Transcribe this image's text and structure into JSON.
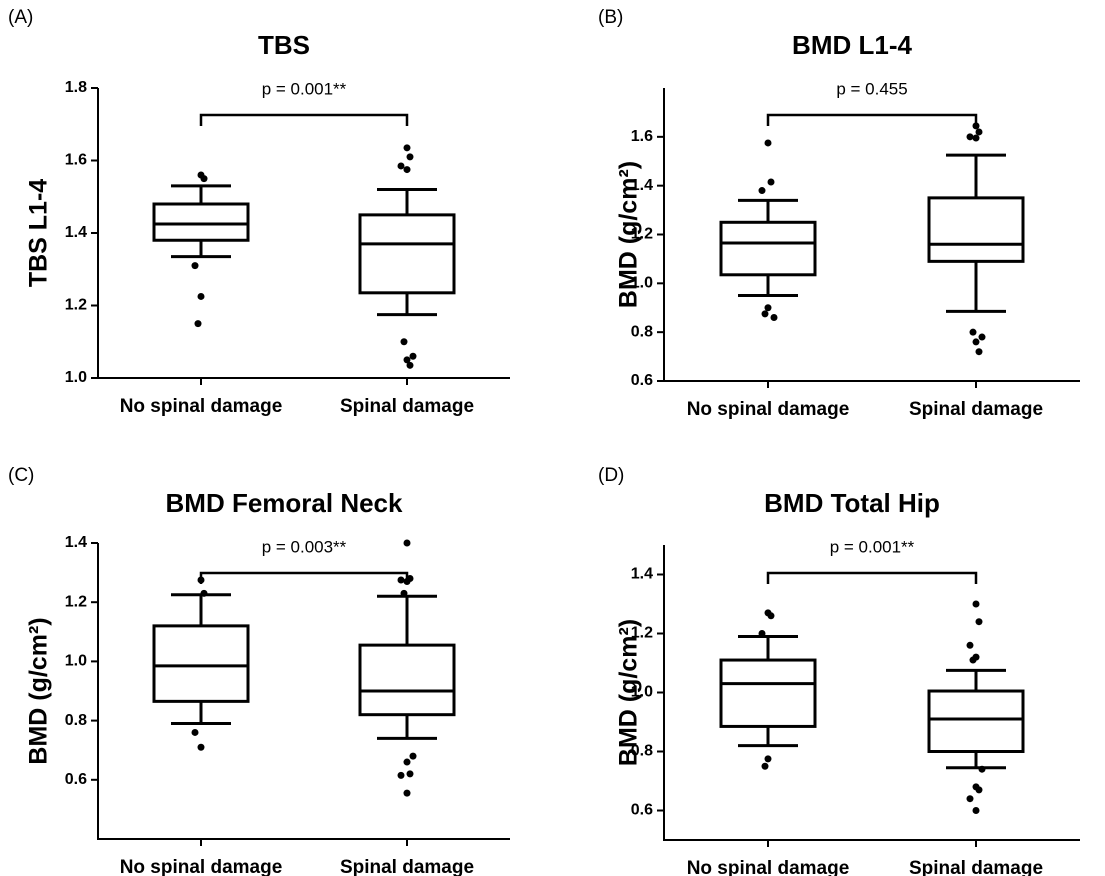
{
  "chart_data": [
    {
      "type": "box",
      "panel_label": "(A)",
      "title": "TBS",
      "ylabel": "TBS L1-4",
      "categories": [
        "No spinal damage",
        "Spinal damage"
      ],
      "boxes": [
        {
          "q1": 1.38,
          "median": 1.425,
          "q3": 1.48,
          "whisker_low": 1.335,
          "whisker_high": 1.53,
          "outliers": [
            1.56,
            1.55,
            1.31,
            1.225,
            1.15
          ]
        },
        {
          "q1": 1.235,
          "median": 1.37,
          "q3": 1.45,
          "whisker_low": 1.175,
          "whisker_high": 1.52,
          "outliers": [
            1.635,
            1.61,
            1.585,
            1.575,
            1.1,
            1.06,
            1.05,
            1.035
          ]
        }
      ],
      "annotation": "p = 0.001**",
      "ylim": [
        1.0,
        1.8
      ],
      "yticks": [
        {
          "value": 1.0,
          "label": "1.0"
        },
        1.2,
        1.4,
        1.6,
        1.8
      ],
      "color": "#000000"
    },
    {
      "type": "box",
      "panel_label": "(B)",
      "title": "BMD L1-4",
      "ylabel": "BMD (g/cm²)",
      "categories": [
        "No spinal damage",
        "Spinal damage"
      ],
      "boxes": [
        {
          "q1": 1.035,
          "median": 1.165,
          "q3": 1.25,
          "whisker_low": 0.95,
          "whisker_high": 1.34,
          "outliers": [
            1.575,
            1.415,
            1.38,
            0.9,
            0.875,
            0.86
          ]
        },
        {
          "q1": 1.09,
          "median": 1.16,
          "q3": 1.35,
          "whisker_low": 0.885,
          "whisker_high": 1.525,
          "outliers": [
            1.645,
            1.62,
            1.6,
            1.595,
            0.8,
            0.78,
            0.76,
            0.72
          ]
        }
      ],
      "annotation": "p = 0.455",
      "ylim": [
        0.6,
        1.8
      ],
      "yticks": [
        0.6,
        0.8,
        {
          "value": 1.0,
          "label": "1.0"
        },
        1.2,
        1.4,
        1.6
      ],
      "color": "#000000"
    },
    {
      "type": "box",
      "panel_label": "(C)",
      "title": "BMD Femoral Neck",
      "ylabel": "BMD (g/cm²)",
      "categories": [
        "No spinal damage",
        "Spinal damage"
      ],
      "boxes": [
        {
          "q1": 0.865,
          "median": 0.985,
          "q3": 1.12,
          "whisker_low": 0.79,
          "whisker_high": 1.225,
          "outliers": [
            1.275,
            1.23,
            0.76,
            0.71
          ]
        },
        {
          "q1": 0.82,
          "median": 0.9,
          "q3": 1.055,
          "whisker_low": 0.74,
          "whisker_high": 1.22,
          "outliers": [
            1.4,
            1.28,
            1.275,
            1.27,
            1.23,
            0.68,
            0.66,
            0.62,
            0.615,
            0.555
          ]
        }
      ],
      "annotation": "p = 0.003**",
      "ylim": [
        0.4,
        1.4
      ],
      "yticks": [
        0.6,
        0.8,
        {
          "value": 1.0,
          "label": "1.0"
        },
        1.2,
        1.4
      ],
      "color": "#000000"
    },
    {
      "type": "box",
      "panel_label": "(D)",
      "title": "BMD Total Hip",
      "ylabel": "BMD (g/cm²)",
      "categories": [
        "No spinal damage",
        "Spinal damage"
      ],
      "boxes": [
        {
          "q1": 0.885,
          "median": 1.03,
          "q3": 1.11,
          "whisker_low": 0.82,
          "whisker_high": 1.19,
          "outliers": [
            1.27,
            1.26,
            1.2,
            0.775,
            0.75
          ]
        },
        {
          "q1": 0.8,
          "median": 0.91,
          "q3": 1.005,
          "whisker_low": 0.745,
          "whisker_high": 1.075,
          "outliers": [
            1.3,
            1.24,
            1.16,
            1.12,
            1.11,
            0.74,
            0.68,
            0.67,
            0.64,
            0.6
          ]
        }
      ],
      "annotation": "p = 0.001**",
      "ylim": [
        0.5,
        1.5
      ],
      "yticks": [
        0.6,
        0.8,
        {
          "value": 1.0,
          "label": "1.0"
        },
        1.2,
        1.4
      ],
      "color": "#000000"
    }
  ]
}
